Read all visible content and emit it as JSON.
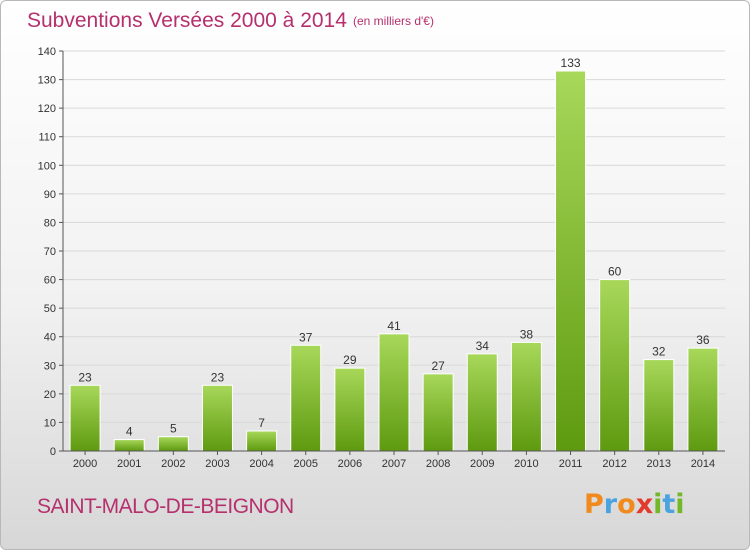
{
  "title": "Subventions Versées 2000 à 2014",
  "unit_note": "(en milliers d'€)",
  "commune": "SAINT-MALO-DE-BEIGNON",
  "logo_text": "Proxiti",
  "colors": {
    "accent": "#b5306d",
    "bar_light": "#a8d85a",
    "bar_dark": "#5e9a10",
    "axis": "#555555",
    "grid": "#d9d9d9"
  },
  "chart_data": {
    "type": "bar",
    "title": "Subventions Versées 2000 à 2014",
    "xlabel": "",
    "ylabel": "",
    "ylim": [
      0,
      140
    ],
    "yticks": [
      0,
      10,
      20,
      30,
      40,
      50,
      60,
      70,
      80,
      90,
      100,
      110,
      120,
      130,
      140
    ],
    "categories": [
      "2000",
      "2001",
      "2002",
      "2003",
      "2004",
      "2005",
      "2006",
      "2007",
      "2008",
      "2009",
      "2010",
      "2011",
      "2012",
      "2013",
      "2014"
    ],
    "values": [
      23,
      4,
      5,
      23,
      7,
      37,
      29,
      41,
      27,
      34,
      38,
      133,
      60,
      32,
      36
    ],
    "grid": true,
    "data_labels": true
  }
}
